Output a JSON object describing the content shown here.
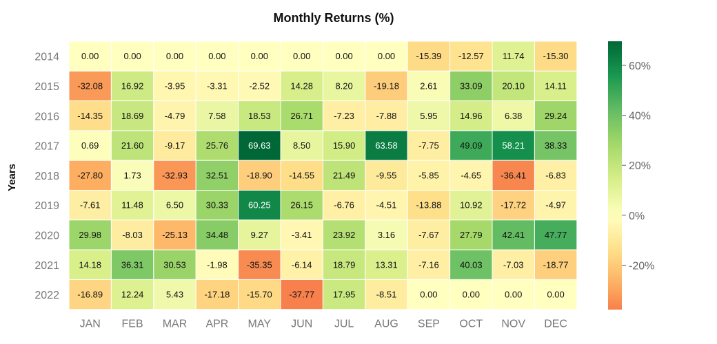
{
  "chart_data": {
    "type": "heatmap",
    "title": "Monthly Returns (%)",
    "ylabel": "Years",
    "xlabel": "",
    "x_categories": [
      "JAN",
      "FEB",
      "MAR",
      "APR",
      "MAY",
      "JUN",
      "JUL",
      "AUG",
      "SEP",
      "OCT",
      "NOV",
      "DEC"
    ],
    "y_categories": [
      "2014",
      "2015",
      "2016",
      "2017",
      "2018",
      "2019",
      "2020",
      "2021",
      "2022"
    ],
    "values": [
      [
        0.0,
        0.0,
        0.0,
        0.0,
        0.0,
        0.0,
        0.0,
        0.0,
        -15.39,
        -12.57,
        11.74,
        -15.3
      ],
      [
        -32.08,
        16.92,
        -3.95,
        -3.31,
        -2.52,
        14.28,
        8.2,
        -19.18,
        2.61,
        33.09,
        20.1,
        14.11
      ],
      [
        -14.35,
        18.69,
        -4.79,
        7.58,
        18.53,
        26.71,
        -7.23,
        -7.88,
        5.95,
        14.96,
        6.38,
        29.24
      ],
      [
        0.69,
        21.6,
        -9.17,
        25.76,
        69.63,
        8.5,
        15.9,
        63.58,
        -7.75,
        49.09,
        58.21,
        38.33
      ],
      [
        -27.8,
        1.73,
        -32.93,
        32.51,
        -18.9,
        -14.55,
        21.49,
        -9.55,
        -5.85,
        -4.65,
        -36.41,
        -6.83
      ],
      [
        -7.61,
        11.48,
        6.5,
        30.33,
        60.25,
        26.15,
        -6.76,
        -4.51,
        -13.88,
        10.92,
        -17.72,
        -4.97
      ],
      [
        29.98,
        -8.03,
        -25.13,
        34.48,
        9.27,
        -3.41,
        23.92,
        3.16,
        -7.67,
        27.79,
        42.41,
        47.77
      ],
      [
        14.18,
        36.31,
        30.53,
        -1.98,
        -35.35,
        -6.14,
        18.79,
        13.31,
        -7.16,
        40.03,
        -7.03,
        -18.77
      ],
      [
        -16.89,
        12.24,
        5.43,
        -17.18,
        -15.7,
        -37.77,
        17.95,
        -8.51,
        0.0,
        0.0,
        0.0,
        0.0
      ]
    ],
    "colorbar": {
      "min": -37.77,
      "max": 69.63,
      "ticks": [
        -20,
        0,
        20,
        40,
        60
      ],
      "tick_labels": [
        "-20%",
        "0%",
        "20%",
        "40%",
        "60%"
      ],
      "colormap": "RdYlGn"
    },
    "grid": false
  }
}
